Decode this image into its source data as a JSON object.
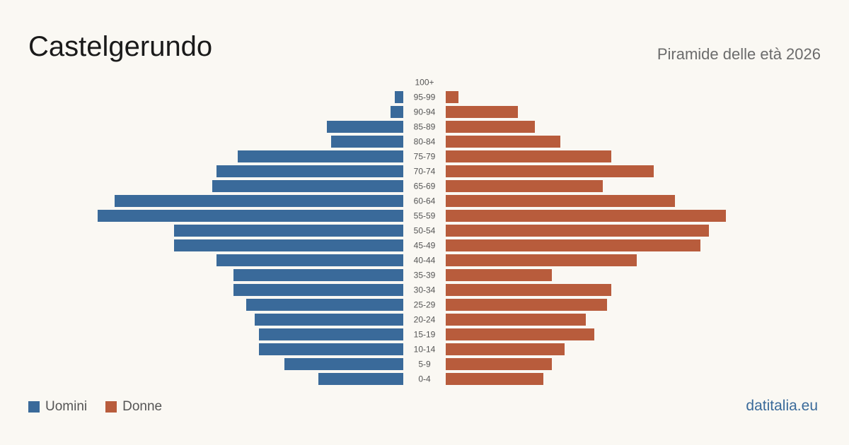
{
  "header": {
    "title": "Castelgerundo",
    "subtitle": "Piramide delle età 2026"
  },
  "legend": {
    "men_label": "Uomini",
    "women_label": "Donne"
  },
  "footer": {
    "brand": "datitalia.eu"
  },
  "colors": {
    "men": "#3a6a9a",
    "women": "#b85c3c",
    "background": "#faf8f3"
  },
  "chart_data": {
    "type": "bar",
    "orientation": "horizontal-population-pyramid",
    "categories": [
      "100+",
      "95-99",
      "90-94",
      "85-89",
      "80-84",
      "75-79",
      "70-74",
      "65-69",
      "60-64",
      "55-59",
      "50-54",
      "45-49",
      "40-44",
      "35-39",
      "30-34",
      "25-29",
      "20-24",
      "15-19",
      "10-14",
      "5-9",
      "0-4"
    ],
    "series": [
      {
        "name": "Uomini",
        "values": [
          0,
          2,
          3,
          18,
          17,
          39,
          44,
          45,
          68,
          72,
          54,
          54,
          44,
          40,
          40,
          37,
          35,
          34,
          34,
          28,
          20
        ]
      },
      {
        "name": "Donne",
        "values": [
          0,
          3,
          17,
          21,
          27,
          39,
          49,
          37,
          54,
          66,
          62,
          60,
          45,
          25,
          39,
          38,
          33,
          35,
          28,
          25,
          23
        ]
      }
    ],
    "grid": false,
    "legend_position": "bottom-left"
  }
}
